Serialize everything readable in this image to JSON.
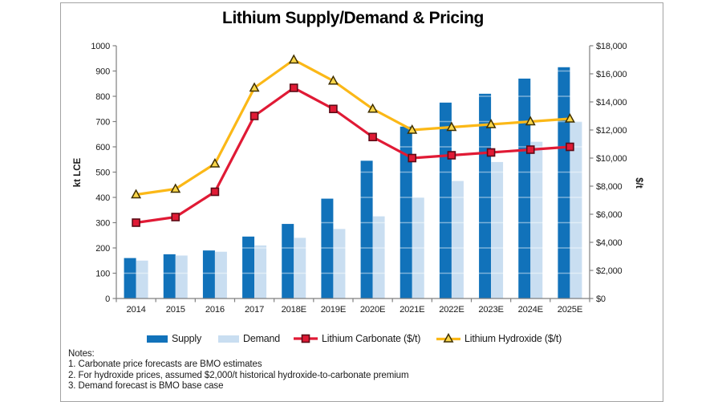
{
  "title": "Lithium Supply/Demand & Pricing",
  "left_axis": {
    "title": "kt LCE",
    "min": 0,
    "max": 1000,
    "step": 100
  },
  "right_axis": {
    "title": "$/t",
    "min": 0,
    "max": 18000,
    "step": 2000,
    "prefix": "$"
  },
  "legend": [
    {
      "label": "Supply",
      "color": "#1172ba"
    },
    {
      "label": "Demand",
      "color": "#c9def1"
    },
    {
      "label": "Lithium Carbonate ($/t)",
      "color": "#e01a35",
      "marker_stroke": "#5c0b16"
    },
    {
      "label": "Lithium Hydroxide ($/t)",
      "color": "#fbb817",
      "marker_stroke": "#403000",
      "marker_fill": "#f9d64a"
    }
  ],
  "notes": {
    "heading": "Notes:",
    "items": [
      "1. Carbonate price forecasts are BMO estimates",
      "2. For hydroxide prices, assumed $2,000/t historical hydroxide-to-carbonate premium",
      "3. Demand forecast is BMO base case"
    ]
  },
  "chart_data": {
    "type": "combo-bar-line",
    "title": "Lithium Supply/Demand & Pricing",
    "categories": [
      "2014",
      "2015",
      "2016",
      "2017",
      "2018E",
      "2019E",
      "2020E",
      "2021E",
      "2022E",
      "2023E",
      "2024E",
      "2025E"
    ],
    "left_axis_label": "kt LCE",
    "right_axis_label": "$/t",
    "left_ylim": [
      0,
      1000
    ],
    "right_ylim": [
      0,
      18000
    ],
    "grid": false,
    "legend_position": "bottom",
    "series": [
      {
        "name": "Supply",
        "type": "bar",
        "axis": "left",
        "color": "#1172ba",
        "values": [
          160,
          175,
          190,
          245,
          295,
          395,
          545,
          680,
          775,
          810,
          870,
          915
        ]
      },
      {
        "name": "Demand",
        "type": "bar",
        "axis": "left",
        "color": "#c9def1",
        "values": [
          150,
          170,
          185,
          210,
          240,
          275,
          325,
          400,
          465,
          540,
          620,
          700
        ]
      },
      {
        "name": "Lithium Carbonate ($/t)",
        "type": "line",
        "marker": "square",
        "axis": "right",
        "color": "#e01a35",
        "marker_fill": "#e01a35",
        "marker_stroke": "#5c0b16",
        "values": [
          5400,
          5800,
          7600,
          13000,
          15000,
          13500,
          11500,
          10000,
          10200,
          10400,
          10600,
          10800
        ]
      },
      {
        "name": "Lithium Hydroxide ($/t)",
        "type": "line",
        "marker": "triangle",
        "axis": "right",
        "color": "#fbb817",
        "marker_fill": "#f9d64a",
        "marker_stroke": "#403000",
        "values": [
          7400,
          7800,
          9600,
          15000,
          17000,
          15500,
          13500,
          12000,
          12200,
          12400,
          12600,
          12800
        ]
      }
    ]
  }
}
